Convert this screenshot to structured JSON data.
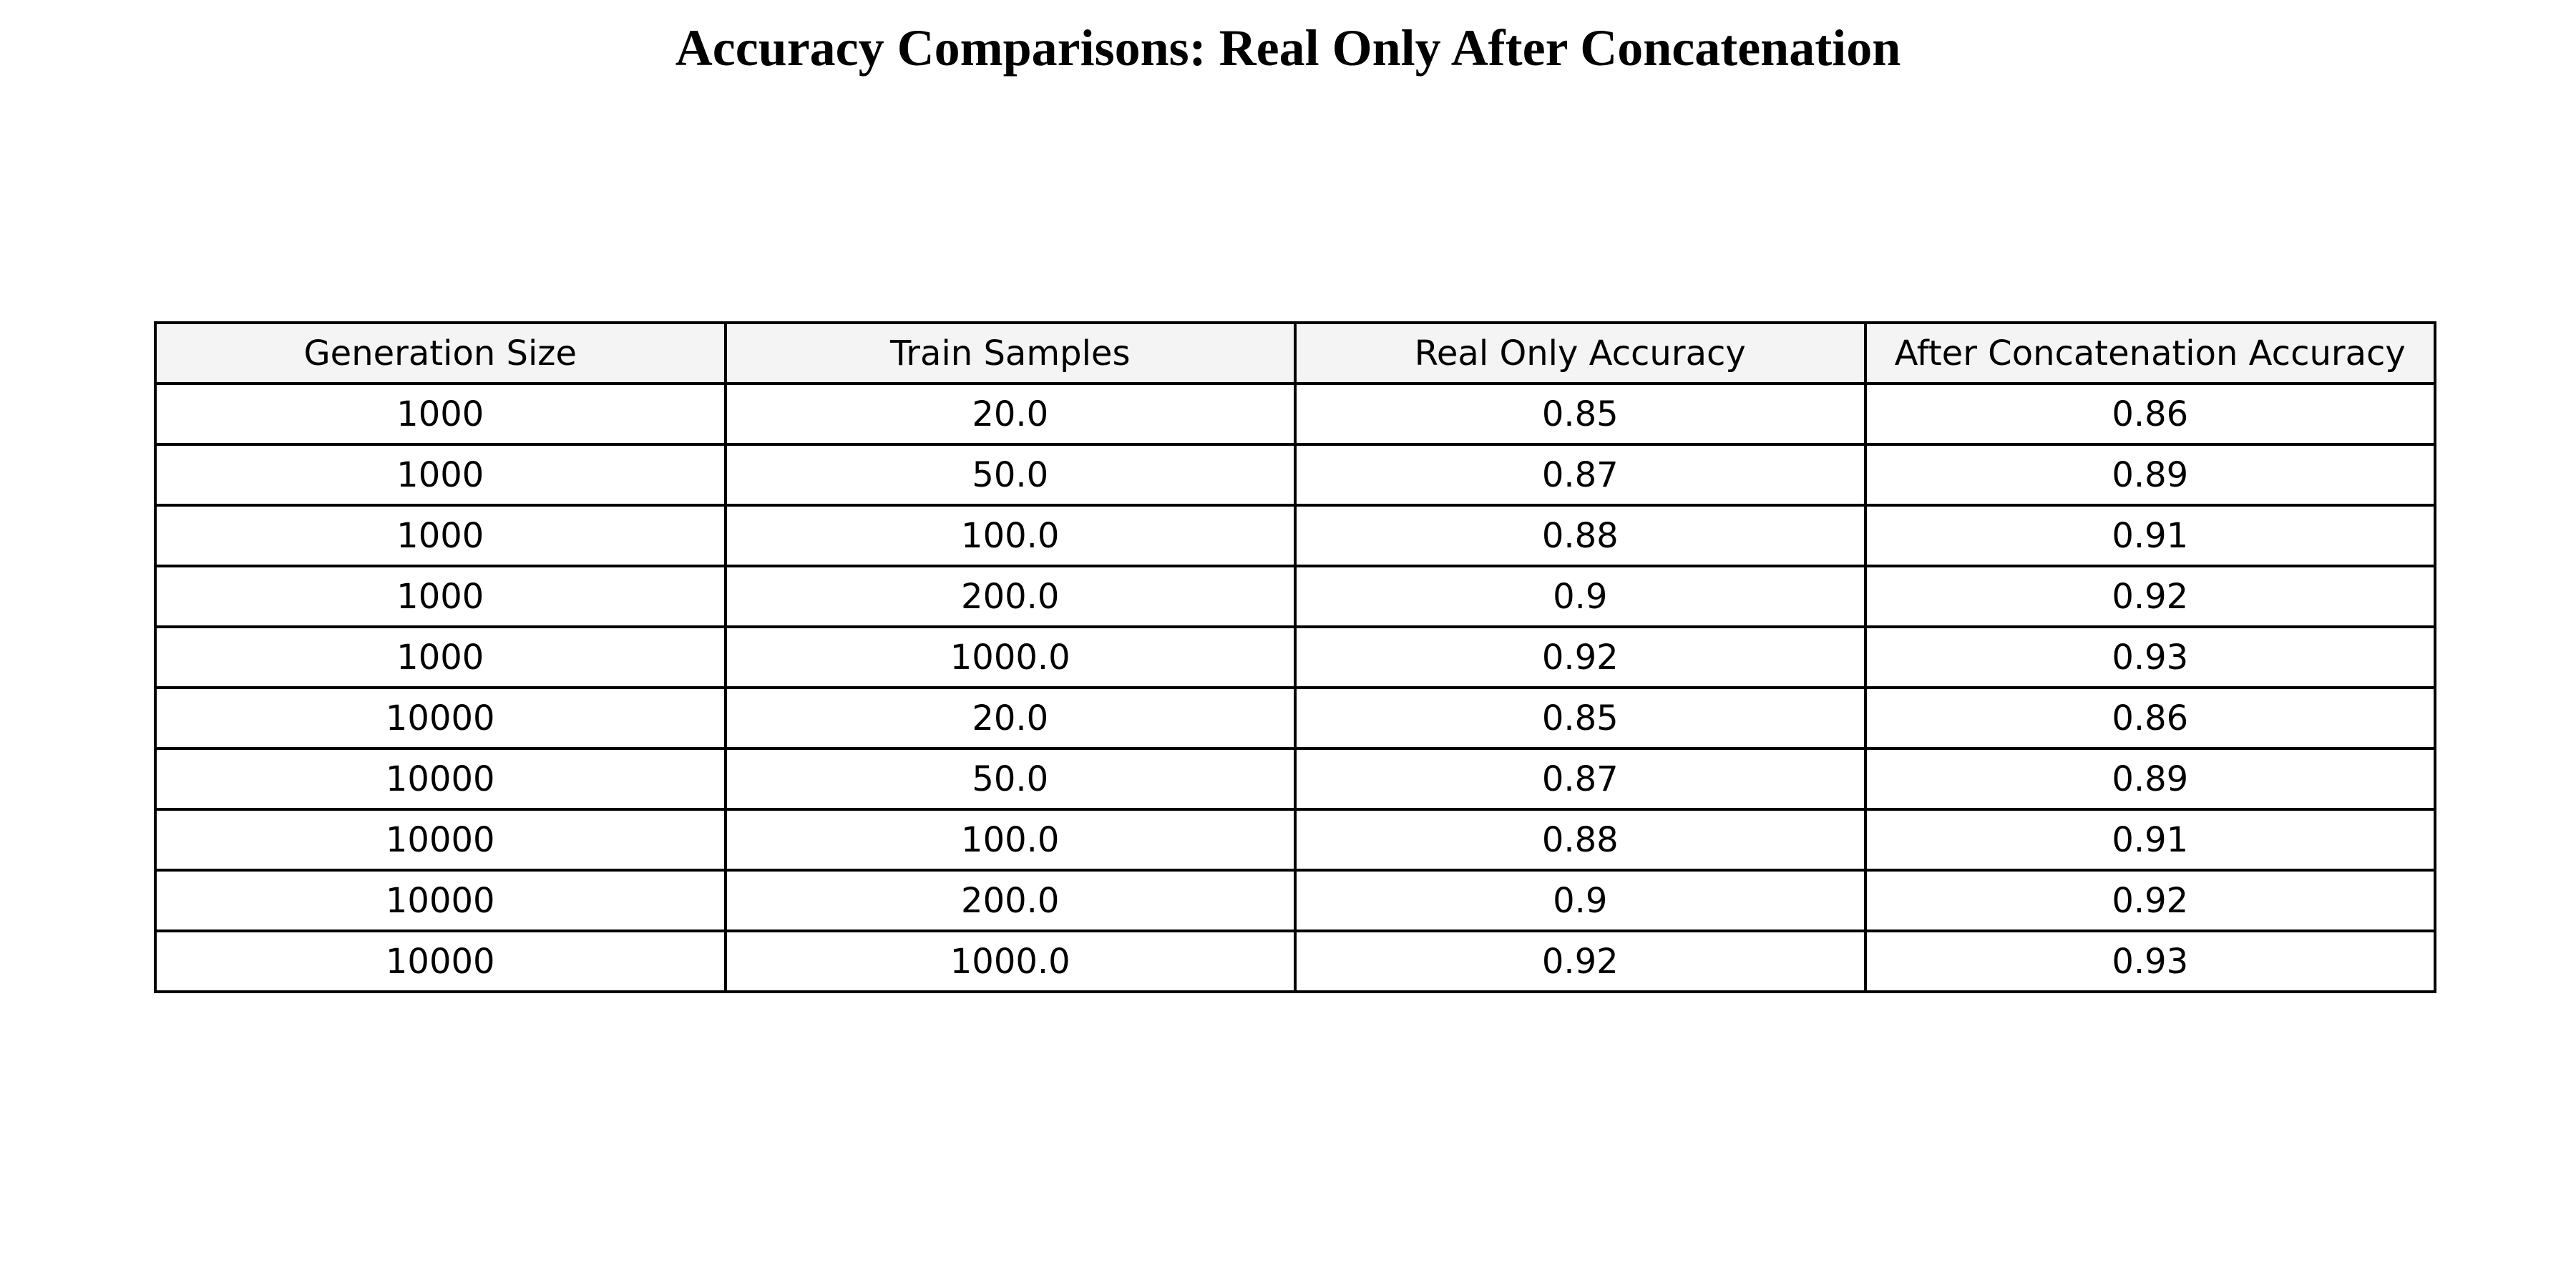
{
  "chart_data": {
    "type": "table",
    "title": "Accuracy Comparisons: Real Only After Concatenation",
    "columns": [
      "Generation Size",
      "Train Samples",
      "Real Only Accuracy",
      "After Concatenation Accuracy"
    ],
    "rows": [
      [
        "1000",
        "20.0",
        "0.85",
        "0.86"
      ],
      [
        "1000",
        "50.0",
        "0.87",
        "0.89"
      ],
      [
        "1000",
        "100.0",
        "0.88",
        "0.91"
      ],
      [
        "1000",
        "200.0",
        "0.9",
        "0.92"
      ],
      [
        "1000",
        "1000.0",
        "0.92",
        "0.93"
      ],
      [
        "10000",
        "20.0",
        "0.85",
        "0.86"
      ],
      [
        "10000",
        "50.0",
        "0.87",
        "0.89"
      ],
      [
        "10000",
        "100.0",
        "0.88",
        "0.91"
      ],
      [
        "10000",
        "200.0",
        "0.9",
        "0.92"
      ],
      [
        "10000",
        "1000.0",
        "0.92",
        "0.93"
      ]
    ]
  },
  "colors": {
    "header_background": "#f4f4f4",
    "cell_background": "#ffffff",
    "border": "#000000",
    "text": "#000000"
  }
}
